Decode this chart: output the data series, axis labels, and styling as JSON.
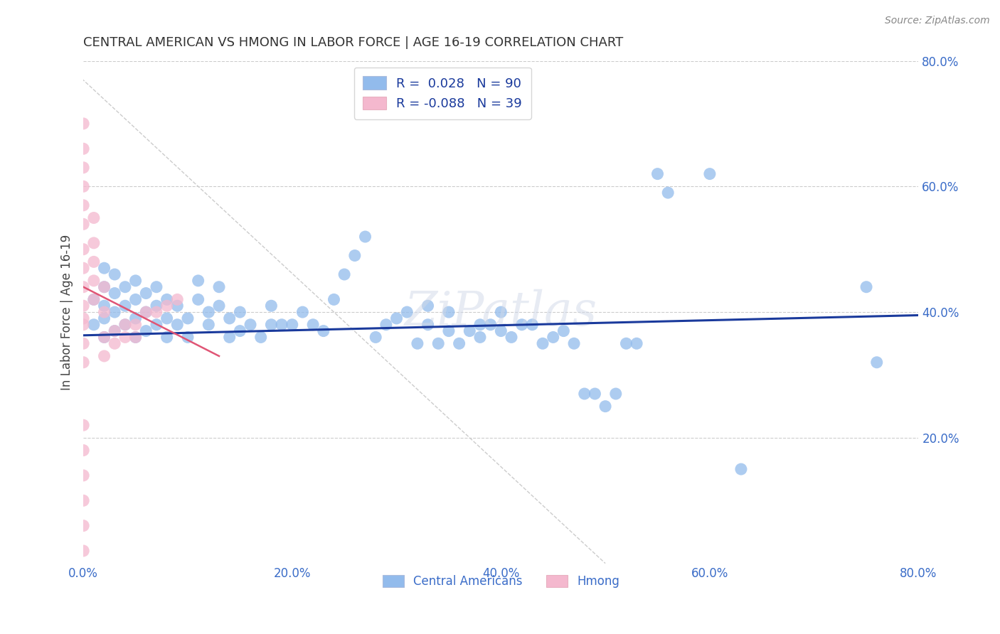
{
  "title": "CENTRAL AMERICAN VS HMONG IN LABOR FORCE | AGE 16-19 CORRELATION CHART",
  "source": "Source: ZipAtlas.com",
  "ylabel": "In Labor Force | Age 16-19",
  "xlim": [
    0.0,
    0.8
  ],
  "ylim": [
    0.0,
    0.8
  ],
  "xtick_labels": [
    "0.0%",
    "20.0%",
    "40.0%",
    "60.0%",
    "80.0%"
  ],
  "xtick_vals": [
    0.0,
    0.2,
    0.4,
    0.6,
    0.8
  ],
  "ytick_labels": [
    "20.0%",
    "40.0%",
    "60.0%",
    "80.0%"
  ],
  "ytick_vals": [
    0.2,
    0.4,
    0.6,
    0.8
  ],
  "background_color": "#ffffff",
  "grid_color": "#cccccc",
  "blue_color": "#92bbec",
  "pink_color": "#f4b8ce",
  "blue_line_color": "#1a3a9c",
  "pink_line_color": "#e05575",
  "diag_line_color": "#cccccc",
  "legend_blue_label": "R =  0.028   N = 90",
  "legend_pink_label": "R = -0.088   N = 39",
  "bottom_legend_blue": "Central Americans",
  "bottom_legend_pink": "Hmong",
  "title_color": "#333333",
  "axis_label_color": "#444444",
  "tick_label_color": "#3a6cc8",
  "watermark": "ZiPatlas",
  "blue_scatter_x": [
    0.01,
    0.01,
    0.02,
    0.02,
    0.02,
    0.02,
    0.02,
    0.03,
    0.03,
    0.03,
    0.03,
    0.04,
    0.04,
    0.04,
    0.05,
    0.05,
    0.05,
    0.05,
    0.06,
    0.06,
    0.06,
    0.07,
    0.07,
    0.07,
    0.08,
    0.08,
    0.08,
    0.09,
    0.09,
    0.1,
    0.1,
    0.11,
    0.11,
    0.12,
    0.12,
    0.13,
    0.13,
    0.14,
    0.14,
    0.15,
    0.15,
    0.16,
    0.17,
    0.18,
    0.18,
    0.19,
    0.2,
    0.21,
    0.22,
    0.23,
    0.24,
    0.25,
    0.26,
    0.27,
    0.28,
    0.29,
    0.3,
    0.31,
    0.32,
    0.33,
    0.33,
    0.34,
    0.35,
    0.35,
    0.36,
    0.37,
    0.38,
    0.38,
    0.39,
    0.4,
    0.4,
    0.41,
    0.42,
    0.43,
    0.44,
    0.45,
    0.46,
    0.47,
    0.48,
    0.49,
    0.5,
    0.51,
    0.52,
    0.53,
    0.55,
    0.56,
    0.6,
    0.63,
    0.75,
    0.76
  ],
  "blue_scatter_y": [
    0.38,
    0.42,
    0.36,
    0.39,
    0.41,
    0.44,
    0.47,
    0.37,
    0.4,
    0.43,
    0.46,
    0.38,
    0.41,
    0.44,
    0.36,
    0.39,
    0.42,
    0.45,
    0.37,
    0.4,
    0.43,
    0.38,
    0.41,
    0.44,
    0.36,
    0.39,
    0.42,
    0.38,
    0.41,
    0.36,
    0.39,
    0.42,
    0.45,
    0.38,
    0.4,
    0.41,
    0.44,
    0.36,
    0.39,
    0.37,
    0.4,
    0.38,
    0.36,
    0.38,
    0.41,
    0.38,
    0.38,
    0.4,
    0.38,
    0.37,
    0.42,
    0.46,
    0.49,
    0.52,
    0.36,
    0.38,
    0.39,
    0.4,
    0.35,
    0.38,
    0.41,
    0.35,
    0.37,
    0.4,
    0.35,
    0.37,
    0.36,
    0.38,
    0.38,
    0.37,
    0.4,
    0.36,
    0.38,
    0.38,
    0.35,
    0.36,
    0.37,
    0.35,
    0.27,
    0.27,
    0.25,
    0.27,
    0.35,
    0.35,
    0.62,
    0.59,
    0.62,
    0.15,
    0.44,
    0.32
  ],
  "pink_scatter_x": [
    0.0,
    0.0,
    0.0,
    0.0,
    0.0,
    0.0,
    0.0,
    0.0,
    0.0,
    0.0,
    0.0,
    0.0,
    0.0,
    0.0,
    0.0,
    0.0,
    0.0,
    0.0,
    0.0,
    0.0,
    0.01,
    0.01,
    0.01,
    0.01,
    0.01,
    0.02,
    0.02,
    0.02,
    0.02,
    0.03,
    0.03,
    0.04,
    0.04,
    0.05,
    0.05,
    0.06,
    0.07,
    0.08,
    0.09
  ],
  "pink_scatter_y": [
    0.7,
    0.66,
    0.63,
    0.6,
    0.57,
    0.54,
    0.5,
    0.47,
    0.44,
    0.41,
    0.38,
    0.35,
    0.32,
    0.22,
    0.18,
    0.14,
    0.1,
    0.06,
    0.02,
    0.39,
    0.42,
    0.45,
    0.48,
    0.51,
    0.55,
    0.44,
    0.4,
    0.36,
    0.33,
    0.37,
    0.35,
    0.38,
    0.36,
    0.38,
    0.36,
    0.4,
    0.4,
    0.41,
    0.42
  ],
  "blue_line_x": [
    0.0,
    0.8
  ],
  "blue_line_y": [
    0.363,
    0.395
  ],
  "pink_line_x": [
    0.0,
    0.13
  ],
  "pink_line_y": [
    0.44,
    0.33
  ]
}
